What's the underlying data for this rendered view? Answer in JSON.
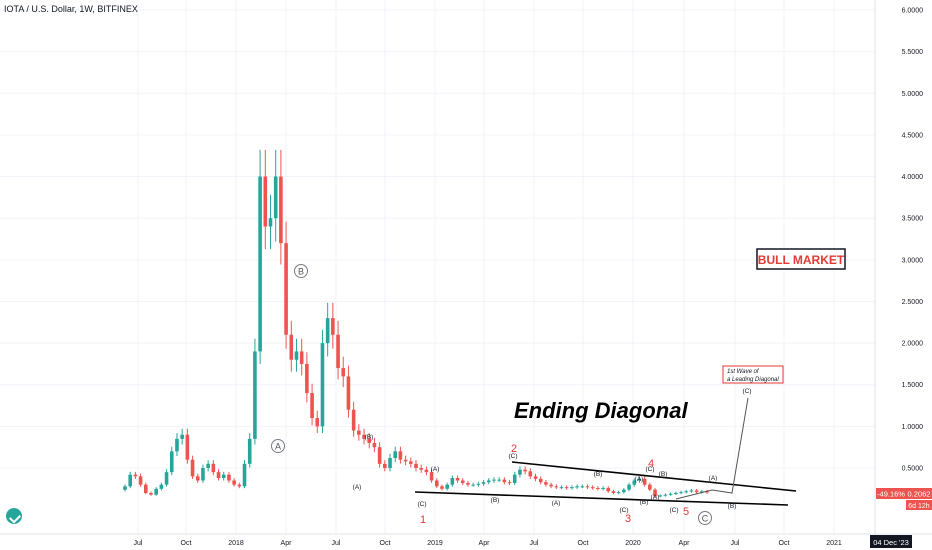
{
  "header": {
    "title": "IOTA / U.S. Dollar, 1W, BITFINEX"
  },
  "price_axis": {
    "labels": [
      "6.0000",
      "5.5000",
      "5.0000",
      "4.5000",
      "4.0000",
      "3.5000",
      "3.0000",
      "2.5000",
      "2.0000",
      "1.5000",
      "1.0000",
      "0.5000"
    ],
    "price_tag": "0.2062",
    "change_tag": "-49.16%",
    "countdown_tag": "6d 12h",
    "tag_color": "#ef5350"
  },
  "time_axis": {
    "labels": [
      "Jul",
      "Oct",
      "2018",
      "Apr",
      "Jul",
      "Oct",
      "2019",
      "Apr",
      "Jul",
      "Oct",
      "2020",
      "Apr",
      "Jul",
      "Oct",
      "2021"
    ],
    "current_date": "04 Dec '23"
  },
  "annotations": {
    "ending_diagonal": "Ending Diagonal",
    "bull_market": "BULL MARKET",
    "leading_diag_line1": "1st Wave of",
    "leading_diag_line2": "a Leading Diagonal",
    "circle_a": "A",
    "circle_b": "B",
    "circle_c": "C",
    "red_waves": [
      "1",
      "2",
      "3",
      "4",
      "5"
    ],
    "sub_waves": [
      "(A)",
      "(B)",
      "(C)",
      "(A)",
      "(B)",
      "(C)",
      "(A)",
      "(B)",
      "(C)",
      "(A)",
      "(B)",
      "(C)",
      "(A)",
      "(B)",
      "(C)",
      "(A)",
      "(B)",
      "(C)",
      "(A)",
      "(B)",
      "(C)"
    ]
  },
  "colors": {
    "up": "#26a69a",
    "down": "#ef5350",
    "text": "#131722",
    "red_label": "#e53935",
    "grid": "#f0f3fa"
  },
  "chart_data": {
    "type": "candlestick",
    "title": "IOTA / U.S. Dollar, 1W, BITFINEX",
    "ylim": [
      0,
      6.1
    ],
    "y_ticks": [
      0.5,
      1,
      1.5,
      2,
      2.5,
      3,
      3.5,
      4,
      4.5,
      5,
      5.5,
      6
    ],
    "x_ticks": [
      "Jul",
      "Oct",
      "2018",
      "Apr",
      "Jul",
      "Oct",
      "2019",
      "Apr",
      "Jul",
      "Oct",
      "2020",
      "Apr",
      "Jul",
      "Oct",
      "2021"
    ],
    "close": [
      0.28,
      0.42,
      0.4,
      0.3,
      0.2,
      0.18,
      0.25,
      0.3,
      0.45,
      0.7,
      0.85,
      0.9,
      0.6,
      0.4,
      0.35,
      0.5,
      0.55,
      0.45,
      0.38,
      0.42,
      0.35,
      0.3,
      0.28,
      0.55,
      0.85,
      1.9,
      4.0,
      3.4,
      3.5,
      4.0,
      3.2,
      2.1,
      1.8,
      1.9,
      1.75,
      1.4,
      1.1,
      1.0,
      2.0,
      2.3,
      2.1,
      1.7,
      1.6,
      1.2,
      0.95,
      0.9,
      0.85,
      0.8,
      0.75,
      0.55,
      0.5,
      0.62,
      0.7,
      0.6,
      0.58,
      0.55,
      0.5,
      0.48,
      0.45,
      0.35,
      0.28,
      0.25,
      0.3,
      0.38,
      0.35,
      0.32,
      0.3,
      0.3,
      0.31,
      0.33,
      0.35,
      0.36,
      0.36,
      0.33,
      0.32,
      0.42,
      0.48,
      0.46,
      0.4,
      0.37,
      0.33,
      0.3,
      0.28,
      0.27,
      0.27,
      0.26,
      0.27,
      0.28,
      0.28,
      0.27,
      0.26,
      0.25,
      0.26,
      0.22,
      0.2,
      0.21,
      0.24,
      0.3,
      0.35,
      0.37,
      0.3,
      0.24,
      0.16,
      0.17,
      0.18,
      0.19,
      0.2,
      0.21,
      0.22,
      0.23,
      0.21,
      0.22,
      0.2062
    ]
  }
}
